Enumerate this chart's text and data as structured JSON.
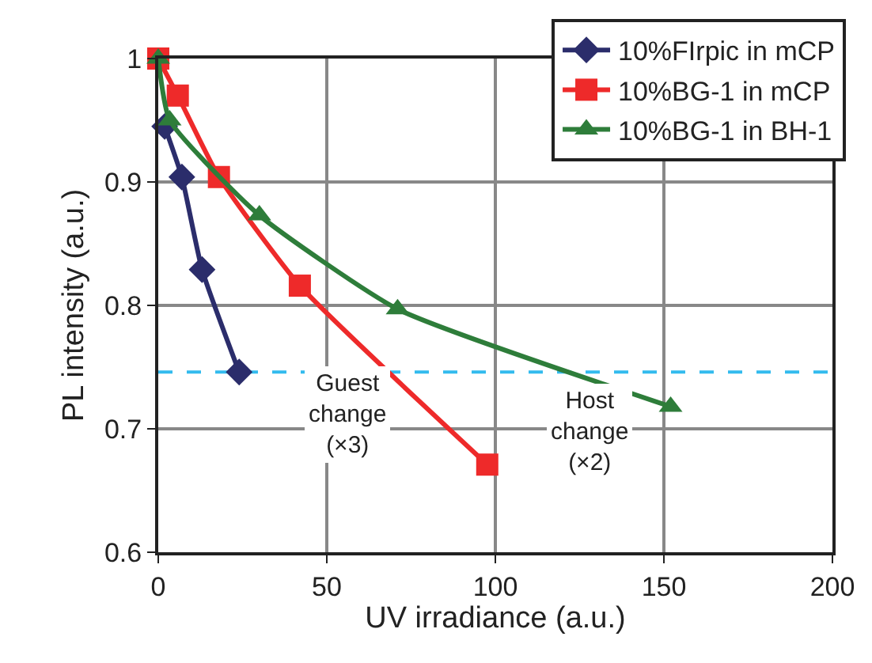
{
  "chart_data": {
    "type": "line",
    "xlabel": "UV irradiance (a.u.)",
    "ylabel": "PL intensity (a.u.)",
    "xlim": [
      0,
      200
    ],
    "xticks": [
      0,
      50,
      100,
      150,
      200
    ],
    "ylim": [
      0.6,
      1
    ],
    "yticks": [
      0.6,
      0.7,
      0.8,
      0.9,
      1
    ],
    "grid": true,
    "legend": "top right",
    "series": [
      {
        "name": "10%FIrpic in mCP",
        "color": "#2b2d6b",
        "marker": "diamond",
        "x": [
          1.9,
          7,
          13,
          24
        ],
        "values": [
          0.945,
          0.904,
          0.829,
          0.746
        ]
      },
      {
        "name": "10%BG-1 in mCP",
        "color": "#ee2a2a",
        "marker": "square",
        "x": [
          0,
          5.8,
          18,
          42,
          97.6
        ],
        "values": [
          1,
          0.97,
          0.904,
          0.816,
          0.671
        ]
      },
      {
        "name": "10%BG-1 in BH-1",
        "color": "#2e7d3a",
        "marker": "triangle",
        "x": [
          0,
          3.4,
          30,
          71,
          152
        ],
        "values": [
          1,
          0.95,
          0.873,
          0.797,
          0.718
        ]
      }
    ],
    "ref_lines": [
      {
        "axis": "y",
        "value": 0.746,
        "color": "#33bbee",
        "line_style": "dashed"
      }
    ],
    "annotations": [
      "Guest\nchange\n(×3)",
      "Host\nchange\n(×2)"
    ]
  }
}
